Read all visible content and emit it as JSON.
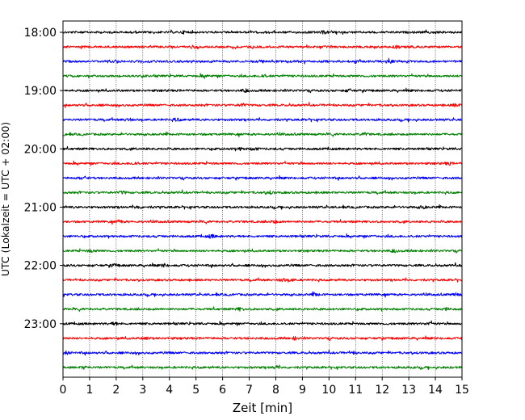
{
  "chart_data": {
    "type": "line",
    "title": "",
    "xlabel": "Zeit  [min]",
    "ylabel": "UTC (Lokalzeit = UTC + 02:00)",
    "xlim": [
      0,
      15
    ],
    "x_ticks": [
      "0",
      "1",
      "2",
      "3",
      "4",
      "5",
      "6",
      "7",
      "8",
      "9",
      "10",
      "11",
      "12",
      "13",
      "14",
      "15"
    ],
    "y_ticks": [
      {
        "label": "18:00",
        "trace": 0
      },
      {
        "label": "19:00",
        "trace": 4
      },
      {
        "label": "20:00",
        "trace": 8
      },
      {
        "label": "21:00",
        "trace": 12
      },
      {
        "label": "22:00",
        "trace": 16
      },
      {
        "label": "23:00",
        "trace": 20
      }
    ],
    "grid": "x-dotted",
    "trace_interval_min": 15,
    "start_time": "18:00",
    "trace_colors": [
      "#000000",
      "#ff0000",
      "#0000ff",
      "#008000"
    ],
    "series": [
      {
        "start": "18:00",
        "color": "#000000",
        "value_min": 0
      },
      {
        "start": "18:15",
        "color": "#ff0000",
        "value_min": 0
      },
      {
        "start": "18:30",
        "color": "#0000ff",
        "value_min": 0
      },
      {
        "start": "18:45",
        "color": "#008000",
        "value_min": 0
      },
      {
        "start": "19:00",
        "color": "#000000",
        "value_min": 0
      },
      {
        "start": "19:15",
        "color": "#ff0000",
        "value_min": 0
      },
      {
        "start": "19:30",
        "color": "#0000ff",
        "value_min": 0
      },
      {
        "start": "19:45",
        "color": "#008000",
        "value_min": 0
      },
      {
        "start": "20:00",
        "color": "#000000",
        "value_min": 0
      },
      {
        "start": "20:15",
        "color": "#ff0000",
        "value_min": 0
      },
      {
        "start": "20:30",
        "color": "#0000ff",
        "value_min": 0
      },
      {
        "start": "20:45",
        "color": "#008000",
        "value_min": 0
      },
      {
        "start": "21:00",
        "color": "#000000",
        "value_min": 0
      },
      {
        "start": "21:15",
        "color": "#ff0000",
        "value_min": 0
      },
      {
        "start": "21:30",
        "color": "#0000ff",
        "value_min": 0
      },
      {
        "start": "21:45",
        "color": "#008000",
        "value_min": 0
      },
      {
        "start": "22:00",
        "color": "#000000",
        "value_min": 0
      },
      {
        "start": "22:15",
        "color": "#ff0000",
        "value_min": 0
      },
      {
        "start": "22:30",
        "color": "#0000ff",
        "value_min": 0
      },
      {
        "start": "22:45",
        "color": "#008000",
        "value_min": 0
      },
      {
        "start": "23:00",
        "color": "#000000",
        "value_min": 0
      },
      {
        "start": "23:15",
        "color": "#ff0000",
        "value_min": 0
      },
      {
        "start": "23:30",
        "color": "#0000ff",
        "value_min": 0
      },
      {
        "start": "23:45",
        "color": "#008000",
        "value_min": 0
      }
    ]
  }
}
